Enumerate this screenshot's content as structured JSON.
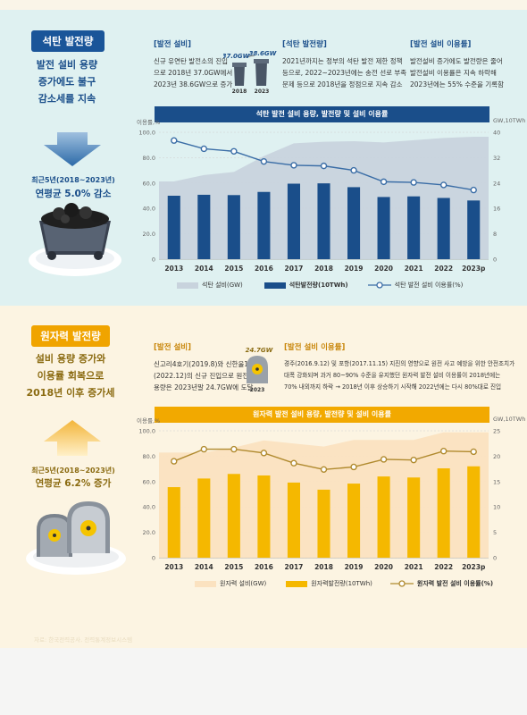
{
  "coal": {
    "badge": "석탄 발전량",
    "headline": [
      "발전 설비 용량",
      "증가에도 불구",
      "감소세를 지속"
    ],
    "stat_small": "최근5년(2018~2023년)",
    "stat_big": "연평균 5.0% 감소",
    "p1": {
      "title": "[발전 설비]",
      "lines": [
        "신규 유연탄 발전소의 진입",
        "으로 2018년 37.0GW에서",
        "2023년 38.6GW으로 증가"
      ]
    },
    "mini": {
      "v1": "37.0GW",
      "v2": "38.6GW",
      "y1": "2018",
      "y2": "2023"
    },
    "p2": {
      "title": "[석탄 발전량]",
      "lines": [
        "2021년까지는 정부의 석탄 발전 제한 정책",
        "등으로, 2022~2023년에는 송전 선로 부족",
        "문제 등으로 2018년을 정점으로 지속 감소"
      ]
    },
    "p3": {
      "title": "[발전 설비 이용률]",
      "lines": [
        "발전설비 증가에도 발전량은 줄어",
        "발전설비 이용률은 지속 하락해",
        "2023년에는 55% 수준을 기록함"
      ]
    }
  },
  "nuclear": {
    "badge": "원자력 발전량",
    "headline": [
      "설비 용량 증가와",
      "이용률 회복으로",
      "2018년 이후 증가세"
    ],
    "stat_small": "최근5년(2018~2023년)",
    "stat_big": "연평균 6.2% 증가",
    "p1": {
      "title": "[발전 설비]",
      "lines": [
        "신고리4호기(2019.8)와 신한울1호기",
        "(2022.12)의 신규 진입으로 원전 설비",
        "용량은 2023년말 24.7GW에 도달"
      ]
    },
    "mini": {
      "v1": "24.7GW",
      "y1": "2023"
    },
    "p2": {
      "title": "[발전 설비 이용률]",
      "lines": [
        "경주(2016.9.12) 및 포항(2017.11.15) 지진의 영향으로 원전 사고 예방을 위한 안전조치가",
        "대폭 강화되며 과거 80~90% 수준을 유지했던 원자력 발전 설비 이용률이 2018년에는",
        "70% 내외까지 하락 → 2018년 이후 상승하기 시작해 2022년에는 다시 80%대로 진입"
      ]
    }
  },
  "footer": "자료: 한국전력공사, 전력통계정보시스템",
  "colors": {
    "coal_bar": "#1a4e8a",
    "coal_area": "#c8d3dd",
    "coal_line": "#3a6da6",
    "nuc_bar": "#f5b800",
    "nuc_area": "#fbe2c0",
    "nuc_line": "#b08a2e"
  },
  "chart_data": [
    {
      "type": "bar",
      "title": "석탄 발전 설비 용량, 발전량 및 설비 이용률",
      "ylabel_left": "이용률,%",
      "ylabel_right": "GW,10TWh",
      "ylim_left": [
        0,
        100
      ],
      "yticks_left": [
        "0",
        "20.0",
        "40.0",
        "60.0",
        "80.0",
        "100.0"
      ],
      "ylim_right": [
        0,
        40
      ],
      "yticks_right": [
        "0",
        "8",
        "16",
        "24",
        "32",
        "40"
      ],
      "categories": [
        "2013",
        "2014",
        "2015",
        "2016",
        "2017",
        "2018",
        "2019",
        "2020",
        "2021",
        "2022",
        "2023p"
      ],
      "series": [
        {
          "name": "석탄 설비(GW)",
          "kind": "area",
          "axis": "right",
          "values": [
            24.5,
            26.5,
            27.5,
            32.5,
            36.5,
            37.0,
            37.2,
            36.8,
            37.5,
            38.2,
            38.6
          ]
        },
        {
          "name": "석탄발전량(10TWh)",
          "kind": "bar",
          "axis": "right",
          "values": [
            20.0,
            20.3,
            20.2,
            21.2,
            23.8,
            23.9,
            22.7,
            19.6,
            19.8,
            19.3,
            18.5
          ]
        },
        {
          "name": "석탄 발전 설비 이용률(%)",
          "kind": "line",
          "axis": "left",
          "values": [
            93.5,
            87.0,
            85.0,
            77.0,
            74.0,
            73.5,
            70.0,
            61.0,
            60.5,
            58.5,
            54.5
          ]
        }
      ]
    },
    {
      "type": "bar",
      "title": "원자력 발전 설비 용량, 발전량 및 설비 이용률",
      "ylabel_left": "이용률,%",
      "ylabel_right": "GW,10TWh",
      "ylim_left": [
        0,
        100
      ],
      "yticks_left": [
        "0",
        "20.0",
        "40.0",
        "60.0",
        "80.0",
        "100.0"
      ],
      "ylim_right": [
        0,
        25
      ],
      "yticks_right": [
        "0",
        "5",
        "10",
        "15",
        "20",
        "25"
      ],
      "categories": [
        "2013",
        "2014",
        "2015",
        "2016",
        "2017",
        "2018",
        "2019",
        "2020",
        "2021",
        "2022",
        "2023p"
      ],
      "series": [
        {
          "name": "원자력 설비(GW)",
          "kind": "area",
          "axis": "right",
          "values": [
            20.7,
            20.7,
            21.7,
            23.1,
            22.5,
            21.9,
            23.2,
            23.2,
            23.2,
            24.7,
            24.7
          ]
        },
        {
          "name": "원자력발전량(10TWh)",
          "kind": "bar",
          "axis": "right",
          "values": [
            13.9,
            15.6,
            16.5,
            16.2,
            14.8,
            13.4,
            14.6,
            16.0,
            15.8,
            17.6,
            18.0
          ]
        },
        {
          "name": "원자력 발전 설비 이용률(%)",
          "kind": "line",
          "axis": "left",
          "values": [
            76.0,
            85.5,
            85.5,
            82.5,
            74.5,
            69.5,
            71.5,
            77.5,
            77.0,
            84.0,
            83.5
          ]
        }
      ]
    }
  ]
}
